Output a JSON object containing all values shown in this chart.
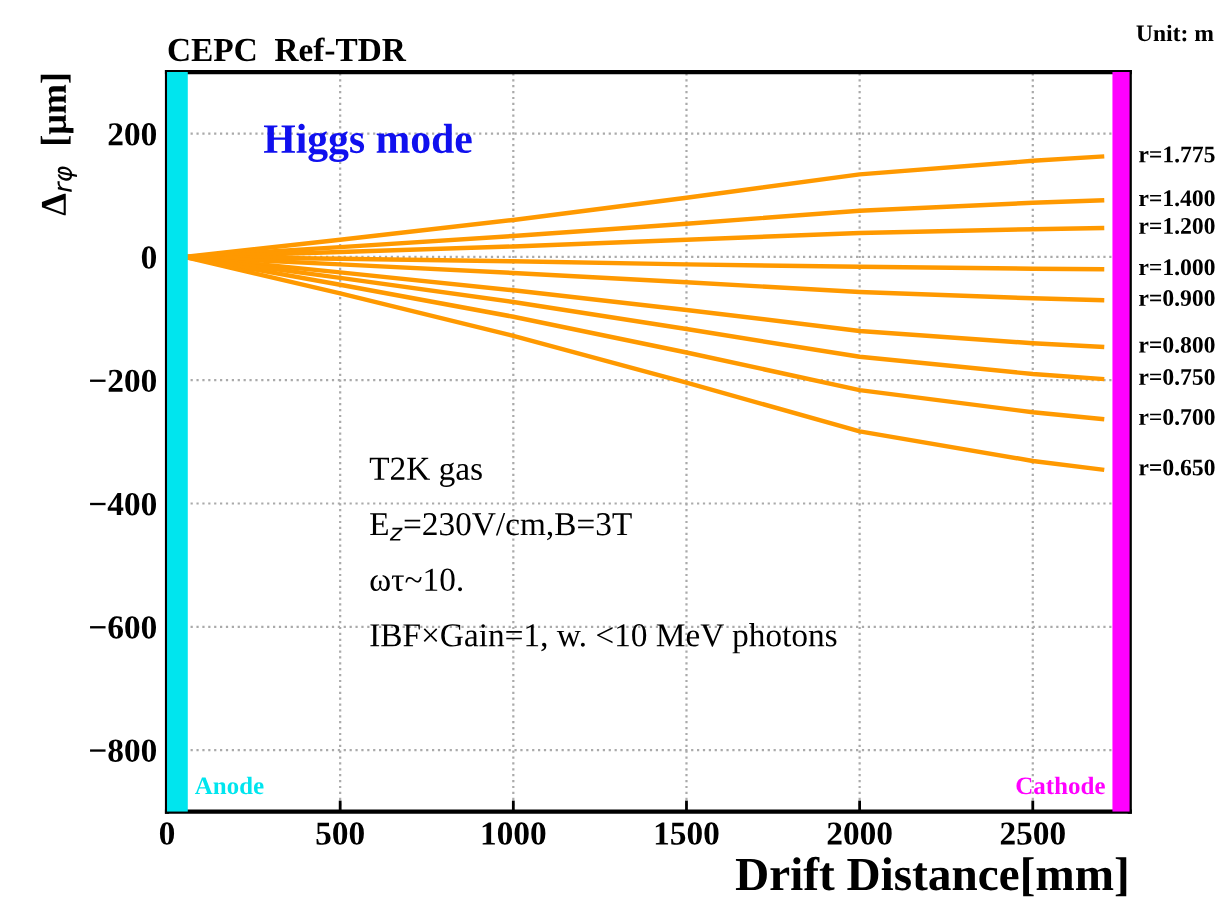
{
  "chart_data": {
    "type": "line",
    "title": "CEPC  Ref-TDR",
    "xlabel": "Drift Distance[mm]",
    "ylabel": "Δ$_{rφ}$  [μm]",
    "x": [
      50,
      500,
      1000,
      1500,
      2000,
      2500,
      2700
    ],
    "series": [
      {
        "name": "r=1.775",
        "color": "#ff9900",
        "values": [
          0,
          28,
          60,
          96,
          134,
          156,
          163
        ]
      },
      {
        "name": "r=1.400",
        "color": "#ff9900",
        "values": [
          0,
          16,
          34,
          54,
          75,
          88,
          92
        ]
      },
      {
        "name": "r=1.200",
        "color": "#ff9900",
        "values": [
          0,
          8,
          17,
          28,
          39,
          45,
          47
        ]
      },
      {
        "name": "r=1.000",
        "color": "#ff9900",
        "values": [
          0,
          -3,
          -7,
          -12,
          -16,
          -19,
          -20
        ]
      },
      {
        "name": "r=0.900",
        "color": "#ff9900",
        "values": [
          0,
          -12,
          -26,
          -41,
          -57,
          -67,
          -70
        ]
      },
      {
        "name": "r=0.800",
        "color": "#ff9900",
        "values": [
          0,
          -25,
          -54,
          -86,
          -120,
          -140,
          -146
        ]
      },
      {
        "name": "r=0.750",
        "color": "#ff9900",
        "values": [
          0,
          -34,
          -73,
          -117,
          -162,
          -190,
          -198
        ]
      },
      {
        "name": "r=0.700",
        "color": "#ff9900",
        "values": [
          0,
          -45,
          -97,
          -155,
          -216,
          -252,
          -263
        ]
      },
      {
        "name": "r=0.650",
        "color": "#ff9900",
        "values": [
          0,
          -59,
          -128,
          -204,
          -283,
          -331,
          -345
        ]
      }
    ],
    "xlim": [
      0,
      2780
    ],
    "ylim": [
      -900,
      300
    ],
    "xticks": [
      0,
      500,
      1000,
      1500,
      2000,
      2500
    ],
    "yticks": [
      -800,
      -600,
      -400,
      -200,
      0,
      200
    ],
    "bands": [
      {
        "axis": "x",
        "from": 0,
        "to": 60,
        "label": "Anode",
        "color": "#00e5ee"
      },
      {
        "axis": "x",
        "from": 2730,
        "to": 2780,
        "label": "Cathode",
        "color": "#ff00ff"
      }
    ],
    "annotations": [
      "Higgs mode",
      "T2K gas",
      "E$_{z}$=230V/cm,B=3T",
      "ωτ~10.",
      "IBF×Gain=1, w. <10 MeV photons",
      "Unit: m"
    ],
    "grid": true,
    "marker": "none",
    "line_style": "solid"
  }
}
